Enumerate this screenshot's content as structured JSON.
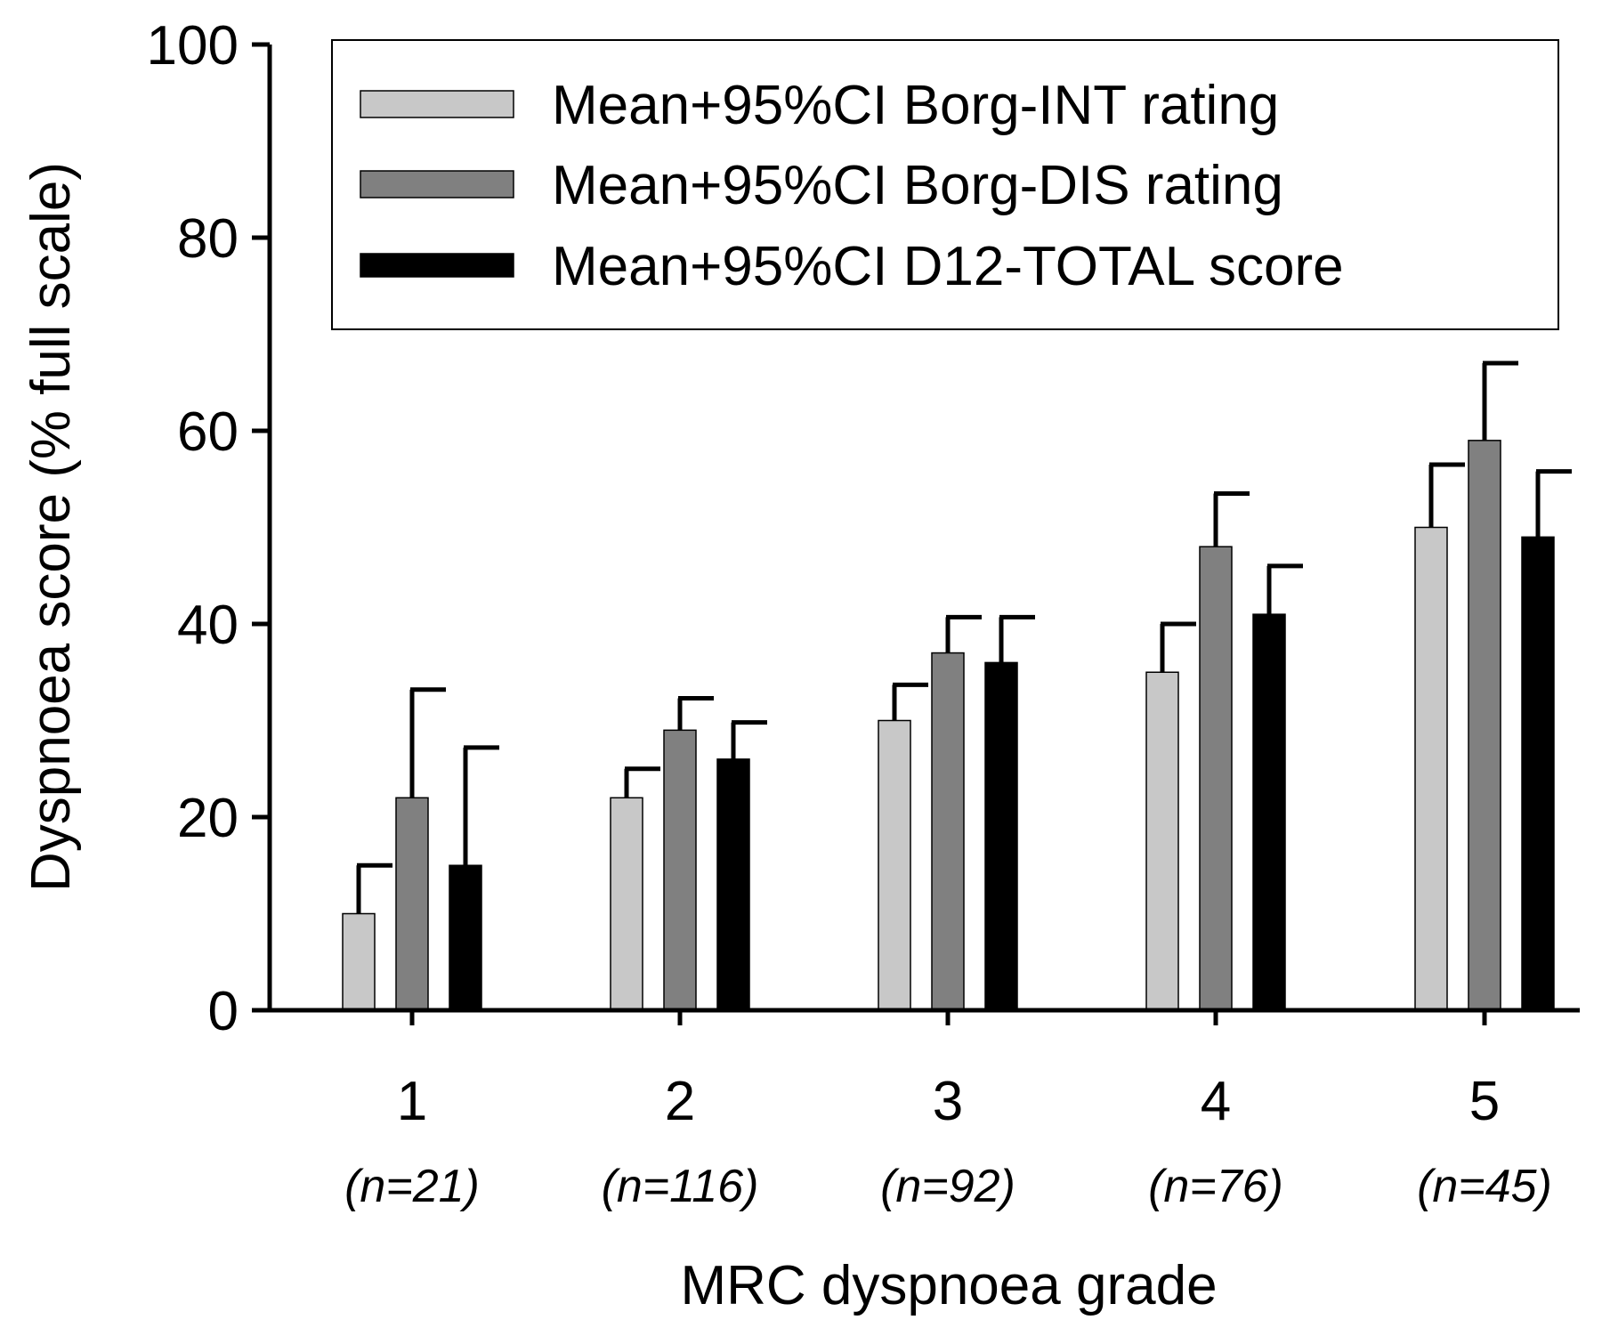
{
  "chart_data": {
    "type": "bar",
    "title": "",
    "xlabel": "MRC dyspnoea grade",
    "ylabel": "Dyspnoea score (% full scale)",
    "ylim": [
      0,
      100
    ],
    "yticks": [
      "0",
      "20",
      "40",
      "60",
      "80",
      "100"
    ],
    "categories": [
      "1",
      "2",
      "3",
      "4",
      "5"
    ],
    "category_n": [
      "(n=21)",
      "(n=116)",
      "(n=92)",
      "(n=76)",
      "(n=45)"
    ],
    "series": [
      {
        "name": "Mean+95%CI Borg-INT rating",
        "color": "#c8c8c8",
        "values": [
          10,
          22,
          30,
          35,
          50
        ],
        "ci_upper": [
          15,
          25,
          33.7,
          40,
          56.5
        ]
      },
      {
        "name": "Mean+95%CI Borg-DIS rating",
        "color": "#808080",
        "values": [
          22,
          29,
          37,
          48,
          59
        ],
        "ci_upper": [
          33.2,
          32.3,
          40.7,
          53.5,
          67
        ]
      },
      {
        "name": "Mean+95%CI D12-TOTAL score",
        "color": "#000000",
        "values": [
          15,
          26,
          36,
          41,
          49
        ],
        "ci_upper": [
          27.2,
          29.8,
          40.7,
          46,
          55.8
        ]
      }
    ],
    "legend_position": "top-right",
    "grid": false
  }
}
